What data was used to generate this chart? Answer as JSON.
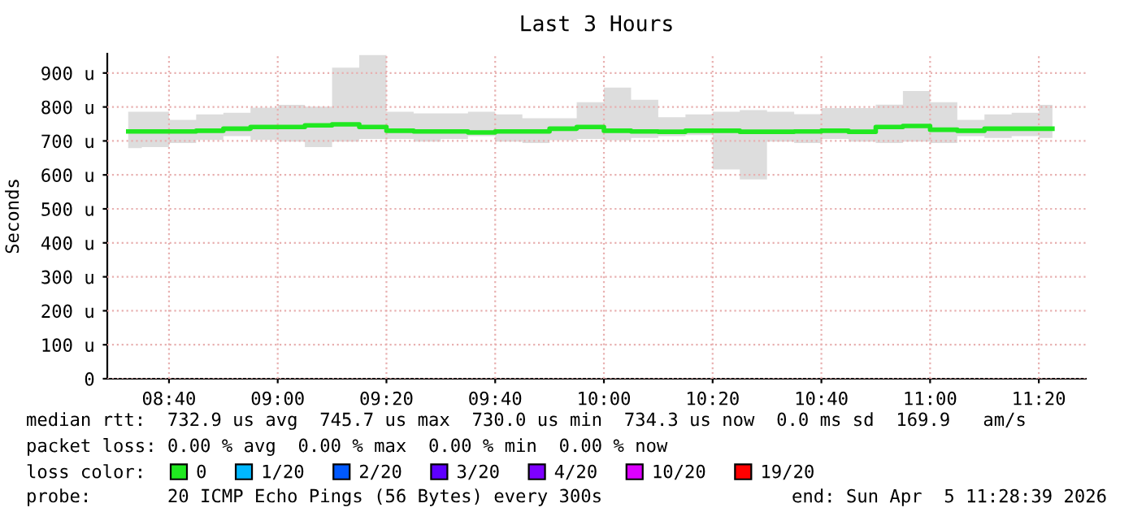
{
  "chart_data": {
    "type": "step",
    "title": "Last 3 Hours",
    "ylabel": "Seconds",
    "x": [
      8.5417,
      8.625,
      8.7083,
      8.7917,
      8.875,
      8.9583,
      9.0417,
      9.125,
      9.2083,
      9.2917,
      9.375,
      9.4583,
      9.5417,
      9.625,
      9.7083,
      9.7917,
      9.875,
      9.9583,
      10.0417,
      10.125,
      10.2083,
      10.2917,
      10.375,
      10.4583,
      10.5417,
      10.625,
      10.7083,
      10.7917,
      10.875,
      10.9583,
      11.0417,
      11.125,
      11.2083,
      11.2917,
      11.375
    ],
    "series": [
      {
        "name": "0",
        "color": "#20e820",
        "values": [
          728,
          728,
          728,
          730,
          736,
          741,
          741,
          746,
          749,
          741,
          730,
          728,
          728,
          725,
          728,
          728,
          736,
          741,
          730,
          728,
          727,
          730,
          730,
          727,
          727,
          728,
          730,
          727,
          741,
          744,
          733,
          730,
          736,
          736,
          736
        ],
        "lower": [
          679,
          682,
          694,
          703,
          714,
          703,
          698,
          682,
          698,
          706,
          706,
          698,
          706,
          714,
          698,
          694,
          702,
          706,
          702,
          709,
          714,
          717,
          616,
          587,
          698,
          694,
          706,
          698,
          694,
          698,
          694,
          714,
          709,
          714,
          709
        ],
        "upper": [
          786,
          786,
          762,
          778,
          783,
          798,
          806,
          801,
          916,
          953,
          786,
          781,
          781,
          786,
          778,
          767,
          767,
          814,
          857,
          821,
          770,
          778,
          786,
          791,
          786,
          779,
          797,
          797,
          807,
          847,
          814,
          762,
          778,
          783,
          806
        ]
      },
      {
        "name": "1/20",
        "color": "#00b8ff",
        "values": [
          null,
          null,
          null,
          null,
          null,
          null,
          null,
          null,
          null,
          null,
          null,
          null,
          null,
          null,
          null,
          null,
          null,
          null,
          null,
          null,
          null,
          null,
          null,
          null,
          null,
          null,
          null,
          null,
          null,
          null,
          null,
          null,
          null,
          null,
          null
        ]
      },
      {
        "name": "2/20",
        "color": "#0059ff",
        "values": [
          null,
          null,
          null,
          null,
          null,
          null,
          null,
          null,
          null,
          null,
          null,
          null,
          null,
          null,
          null,
          null,
          null,
          null,
          null,
          null,
          null,
          null,
          null,
          null,
          null,
          null,
          null,
          null,
          null,
          null,
          null,
          null,
          null,
          null,
          null
        ]
      },
      {
        "name": "3/20",
        "color": "#5e00ff",
        "values": [
          null,
          null,
          null,
          null,
          null,
          null,
          null,
          null,
          null,
          null,
          null,
          null,
          null,
          null,
          null,
          null,
          null,
          null,
          null,
          null,
          null,
          null,
          null,
          null,
          null,
          null,
          null,
          null,
          null,
          null,
          null,
          null,
          null,
          null,
          null
        ]
      },
      {
        "name": "4/20",
        "color": "#7e00ff",
        "values": [
          null,
          null,
          null,
          null,
          null,
          null,
          null,
          null,
          null,
          null,
          null,
          null,
          null,
          null,
          null,
          null,
          null,
          null,
          null,
          null,
          null,
          null,
          null,
          null,
          null,
          null,
          null,
          null,
          null,
          null,
          null,
          null,
          null,
          null,
          null
        ]
      },
      {
        "name": "10/20",
        "color": "#dd00ff",
        "values": [
          null,
          null,
          null,
          null,
          null,
          null,
          null,
          null,
          null,
          null,
          null,
          null,
          null,
          null,
          null,
          null,
          null,
          null,
          null,
          null,
          null,
          null,
          null,
          null,
          null,
          null,
          null,
          null,
          null,
          null,
          null,
          null,
          null,
          null,
          null
        ]
      },
      {
        "name": "19/20",
        "color": "#ff0000",
        "values": [
          null,
          null,
          null,
          null,
          null,
          null,
          null,
          null,
          null,
          null,
          null,
          null,
          null,
          null,
          null,
          null,
          null,
          null,
          null,
          null,
          null,
          null,
          null,
          null,
          null,
          null,
          null,
          null,
          null,
          null,
          null,
          null,
          null,
          null,
          null
        ]
      }
    ],
    "legend": "bottom",
    "legend_title": "loss color:",
    "xlim": [
      8.4775,
      11.4775
    ],
    "xticks": [
      {
        "value": 8.6667,
        "label": "08:40"
      },
      {
        "value": 9.0,
        "label": "09:00"
      },
      {
        "value": 9.3333,
        "label": "09:20"
      },
      {
        "value": 9.6667,
        "label": "09:40"
      },
      {
        "value": 10.0,
        "label": "10:00"
      },
      {
        "value": 10.3333,
        "label": "10:20"
      },
      {
        "value": 10.6667,
        "label": "10:40"
      },
      {
        "value": 11.0,
        "label": "11:00"
      },
      {
        "value": 11.3333,
        "label": "11:20"
      }
    ],
    "ylim": [
      0,
      957
    ],
    "yticks": [
      0,
      {
        "value": 100,
        "label": "100 u"
      },
      {
        "value": 200,
        "label": "200 u"
      },
      {
        "value": 300,
        "label": "300 u"
      },
      {
        "value": 400,
        "label": "400 u"
      },
      {
        "value": 500,
        "label": "500 u"
      },
      {
        "value": 600,
        "label": "600 u"
      },
      {
        "value": 700,
        "label": "700 u"
      },
      {
        "value": 800,
        "label": "800 u"
      },
      {
        "value": 900,
        "label": "900 u"
      }
    ],
    "grid": true,
    "line_style": "solid",
    "marker": "none",
    "annotations": [
      "median rtt:  732.9 us avg  745.7 us max  730.0 us min  734.3 us now  0.0 ms sd  169.9   am/s",
      "packet loss: 0.00 % avg  0.00 % max  0.00 % min  0.00 % now",
      "probe:       20 ICMP Echo Pings (56 Bytes) every 300s",
      "end: Sun Apr  5 11:28:39 2026"
    ]
  }
}
